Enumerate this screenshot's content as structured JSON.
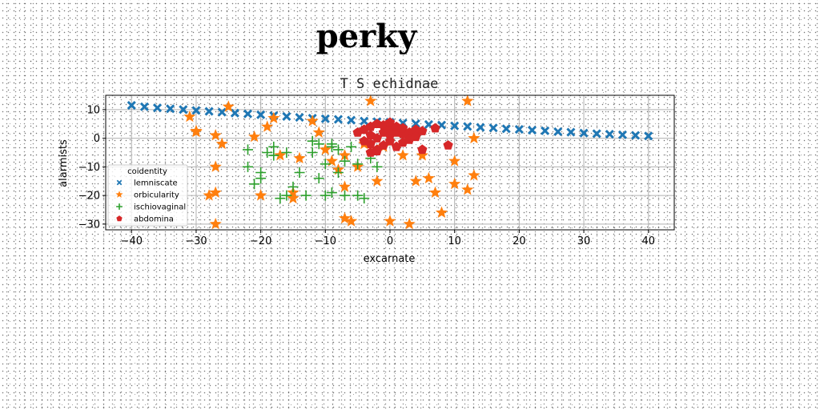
{
  "figure": {
    "suptitle": "perky"
  },
  "chart_data": {
    "type": "scatter",
    "title": "T S echidnae",
    "xlabel": "excarnate",
    "ylabel": "alarmists",
    "xlim": [
      -44,
      44
    ],
    "ylim": [
      -32,
      15
    ],
    "xticks": [
      -40,
      -30,
      -20,
      -10,
      0,
      10,
      20,
      30,
      40
    ],
    "yticks": [
      10,
      0,
      -10,
      -20,
      -30
    ],
    "grid": true,
    "legend": {
      "title": "coidentity",
      "placement": "lower-left"
    },
    "series": [
      {
        "name": "lemniscate",
        "marker": "x",
        "color": "#1f77b4",
        "x": [
          -40,
          -38,
          -36,
          -34,
          -32,
          -30,
          -28,
          -26,
          -24,
          -22,
          -20,
          -18,
          -16,
          -14,
          -12,
          -10,
          -8,
          -6,
          -4,
          -2,
          0,
          2,
          4,
          6,
          8,
          10,
          12,
          14,
          16,
          18,
          20,
          22,
          24,
          26,
          28,
          30,
          32,
          34,
          36,
          38,
          40
        ],
        "y": [
          11.5,
          11.0,
          10.6,
          10.3,
          10.0,
          9.7,
          9.4,
          9.1,
          8.8,
          8.5,
          8.2,
          7.9,
          7.6,
          7.3,
          7.0,
          6.8,
          6.6,
          6.3,
          6.0,
          5.8,
          5.6,
          5.3,
          5.1,
          4.8,
          4.6,
          4.3,
          4.1,
          3.8,
          3.6,
          3.3,
          3.1,
          2.8,
          2.6,
          2.3,
          2.1,
          1.8,
          1.6,
          1.4,
          1.2,
          1.0,
          0.8
        ]
      },
      {
        "name": "orbicularity",
        "marker": "star",
        "color": "#ff7f0e",
        "x": [
          -31,
          -30,
          -30,
          -27,
          -26,
          -27,
          -27,
          -28,
          -27,
          -25,
          -21,
          -20,
          -19,
          -18,
          -17,
          -15,
          -15,
          -14,
          -12,
          -11,
          -10,
          -9,
          -8,
          -7,
          -7,
          -7,
          -6,
          -5,
          -4,
          -3,
          -2,
          -1,
          0,
          2,
          3,
          4,
          5,
          6,
          7,
          8,
          10,
          10,
          12,
          12,
          13,
          13,
          1
        ],
        "y": [
          7.5,
          2.5,
          2.2,
          1.0,
          -2.0,
          -10.0,
          -19.0,
          -20.0,
          -30.0,
          11.0,
          0.5,
          -20.0,
          4.0,
          7.0,
          -6.0,
          -19.0,
          -21.0,
          -7.0,
          6.0,
          2.0,
          -4.0,
          -8.0,
          -11.0,
          -17.0,
          -28.0,
          -6.0,
          -29.0,
          -10.0,
          -2.0,
          13.0,
          -15.0,
          -3.0,
          -29.0,
          -6.0,
          -30.0,
          -15.0,
          -6.0,
          -14.0,
          -19.0,
          -26.0,
          -8.0,
          -16.0,
          13.0,
          -18.0,
          0.0,
          -13.0,
          2.0
        ]
      },
      {
        "name": "ischiovaginal",
        "marker": "plus",
        "color": "#2ca02c",
        "x": [
          -22,
          -22,
          -21,
          -20,
          -20,
          -19,
          -18,
          -18,
          -17,
          -16,
          -16,
          -15,
          -14,
          -13,
          -12,
          -12,
          -11,
          -11,
          -10,
          -10,
          -9,
          -9,
          -9,
          -8,
          -8,
          -7,
          -7,
          -6,
          -5,
          -5,
          -4,
          -3,
          -2
        ],
        "y": [
          -4.0,
          -10.0,
          -16.0,
          -12.0,
          -14.0,
          -5.0,
          -3.0,
          -6.0,
          -21.0,
          -5.0,
          -20.0,
          -17.0,
          -12.0,
          -20.0,
          -1.0,
          -5.0,
          -2.0,
          -14.0,
          -20.0,
          -9.0,
          -3.0,
          -2.0,
          -19.0,
          -4.0,
          -12.0,
          -8.0,
          -20.0,
          -3.0,
          -9.0,
          -20.0,
          -21.0,
          -7.0,
          -10.0
        ]
      },
      {
        "name": "abdomina",
        "marker": "pentagon",
        "color": "#d62728",
        "x": [
          -5,
          -4,
          -4,
          -3,
          -3,
          -3,
          -2,
          -2,
          -2,
          -1,
          -1,
          -1,
          0,
          0,
          0,
          0,
          1,
          1,
          1,
          2,
          2,
          2,
          3,
          3,
          4,
          4,
          5,
          5,
          -3,
          -2,
          9,
          7
        ],
        "y": [
          2.0,
          3.0,
          -1.0,
          1.0,
          4.0,
          -2.0,
          5.0,
          0.0,
          -4.0,
          2.0,
          4.5,
          -2.5,
          1.0,
          3.0,
          5.5,
          -1.0,
          2.0,
          4.0,
          -3.0,
          1.5,
          3.5,
          -1.5,
          2.0,
          -0.5,
          3.0,
          0.5,
          2.5,
          -4.0,
          -5.0,
          -4.5,
          -2.5,
          3.5
        ]
      }
    ]
  }
}
